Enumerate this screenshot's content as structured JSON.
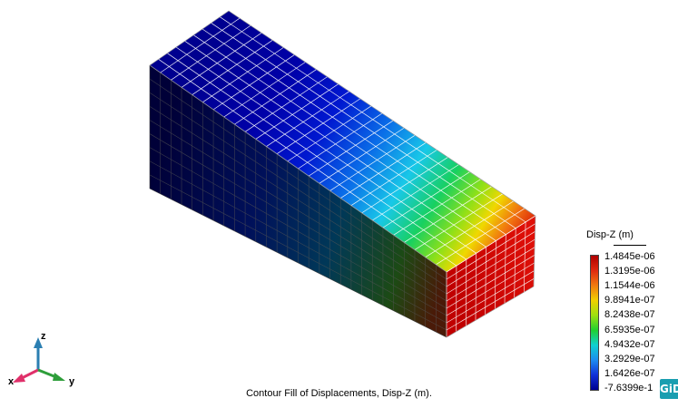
{
  "caption": "Contour Fill of Displacements, Disp-Z (m).",
  "legend": {
    "title": "Disp-Z (m)",
    "labels": [
      "1.4845e-06",
      "1.3195e-06",
      "1.1544e-06",
      "9.8941e-07",
      "8.2438e-07",
      "6.5935e-07",
      "4.9432e-07",
      "3.2929e-07",
      "1.6426e-07",
      "-7.6399e-1"
    ],
    "colors": [
      "#b00000",
      "#e02a10",
      "#f07a10",
      "#f0d000",
      "#9ee010",
      "#20d030",
      "#10d0d0",
      "#1c8cf0",
      "#1030d8",
      "#000090"
    ]
  },
  "axes": {
    "x": "x",
    "y": "y",
    "z": "z"
  },
  "logo": "GiD",
  "colors": {
    "low": "#00008f",
    "high": "#c80000",
    "mesh_line": "#ffffff",
    "axis_x": "#e0306a",
    "axis_y": "#2e9e3a",
    "axis_z": "#2b7fb2"
  }
}
